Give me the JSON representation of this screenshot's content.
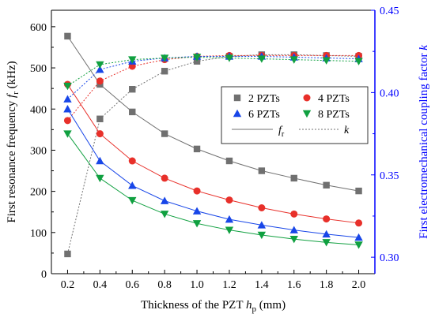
{
  "chart_data": {
    "type": "line",
    "x": [
      0.2,
      0.4,
      0.6,
      0.8,
      1.0,
      1.2,
      1.4,
      1.6,
      1.8,
      2.0
    ],
    "xlabel": {
      "main": "Thickness of the PZT ",
      "var": "h",
      "sub": "p",
      "unit": " (mm)"
    },
    "ylabel_left": {
      "main": "First resonance frequency ",
      "var": "f",
      "sub": "r",
      "unit": " (kHz)"
    },
    "ylabel_right": {
      "main": "First electromechanical coupling factor ",
      "var": "k"
    },
    "x_ticks": [
      "0.2",
      "0.4",
      "0.6",
      "0.8",
      "1.0",
      "1.2",
      "1.4",
      "1.6",
      "1.8",
      "2.0"
    ],
    "y_left_ticks": [
      "0",
      "100",
      "200",
      "300",
      "400",
      "500",
      "600"
    ],
    "y_right_ticks": [
      "0.30",
      "0.35",
      "0.40",
      "0.45"
    ],
    "xlim": [
      0.1,
      2.1
    ],
    "ylim_left": [
      0,
      640
    ],
    "ylim_right": [
      0.29,
      0.45
    ],
    "grid": false,
    "legend_position": "center-right",
    "legend": {
      "series": [
        "2 PZTs",
        "4 PZTs",
        "6 PZTs",
        "8 PZTs"
      ],
      "fr_label": {
        "var": "f",
        "sub": "r"
      },
      "k_label": "k"
    },
    "series": [
      {
        "name": "2 PZTs",
        "color": "#707070",
        "marker": "square",
        "fr": [
          577,
          460,
          393,
          340,
          303,
          274,
          250,
          232,
          215,
          201
        ],
        "k": [
          0.302,
          0.384,
          0.402,
          0.413,
          0.419,
          0.422,
          0.423,
          0.423,
          0.4225,
          0.422
        ]
      },
      {
        "name": "4 PZTs",
        "color": "#e8302a",
        "marker": "circle",
        "fr": [
          460,
          340,
          274,
          232,
          201,
          179,
          160,
          145,
          133,
          123
        ],
        "k": [
          0.383,
          0.407,
          0.416,
          0.42,
          0.422,
          0.4225,
          0.4225,
          0.4225,
          0.4225,
          0.4225
        ]
      },
      {
        "name": "6 PZTs",
        "color": "#1846e8",
        "marker": "triangle-up",
        "fr": [
          400,
          274,
          214,
          177,
          152,
          132,
          118,
          106,
          96,
          88
        ],
        "k": [
          0.396,
          0.414,
          0.419,
          0.421,
          0.422,
          0.422,
          0.422,
          0.4215,
          0.421,
          0.4205
        ]
      },
      {
        "name": "8 PZTs",
        "color": "#10a040",
        "marker": "triangle-down",
        "fr": [
          340,
          232,
          178,
          145,
          122,
          106,
          94,
          84,
          76,
          70
        ],
        "k": [
          0.404,
          0.417,
          0.42,
          0.421,
          0.4215,
          0.421,
          0.4205,
          0.42,
          0.4195,
          0.419
        ]
      }
    ],
    "colors": {
      "axis": "#000000",
      "right_axis": "#0000ff"
    }
  }
}
